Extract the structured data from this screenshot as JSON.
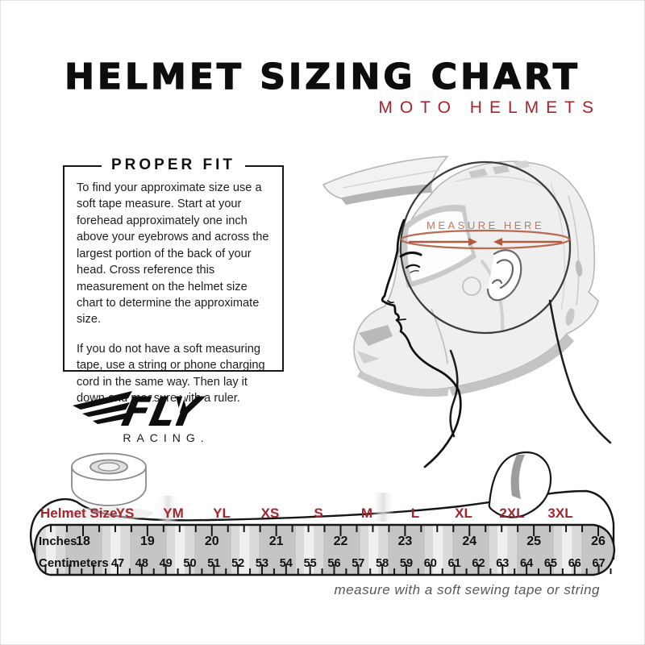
{
  "header": {
    "title": "HELMET SIZING CHART",
    "subtitle": "MOTO HELMETS",
    "subtitle_color": "#a6242c",
    "title_color": "#0d0d0d"
  },
  "proper_fit": {
    "heading": "PROPER FIT",
    "paragraph1": "To find your approximate size use a soft tape measure. Start at your forehead approximately one inch above your eyebrows and across the largest portion of the back of your head. Cross reference this measurement on the helmet size chart to determine the approximate size.",
    "paragraph2": "If you do not have a soft measuring tape, use a string or phone charging cord in the same way. Then lay it down and measure with a ruler."
  },
  "illustration": {
    "measure_label": "MEASURE HERE",
    "measure_label_color": "#c07a62",
    "arrow_color": "#b25a40",
    "head_circle_color": "#3d3d3d"
  },
  "logo": {
    "brand": "FLY",
    "sub": "RACING."
  },
  "tape": {
    "row_labels": {
      "size": "Helmet Size",
      "inches": "Inches",
      "centimeters": "Centimeters"
    },
    "sizes": [
      "YS",
      "YM",
      "YL",
      "XS",
      "S",
      "M",
      "L",
      "XL",
      "2XL",
      "3XL"
    ],
    "inches": [
      18,
      19,
      20,
      21,
      22,
      23,
      24,
      25,
      26
    ],
    "centimeters": [
      47,
      48,
      49,
      50,
      51,
      52,
      53,
      54,
      55,
      56,
      57,
      58,
      59,
      60,
      61,
      62,
      63,
      64,
      65,
      66,
      67
    ],
    "size_color": "#a6242c",
    "caption": "measure with a soft sewing tape or string"
  }
}
